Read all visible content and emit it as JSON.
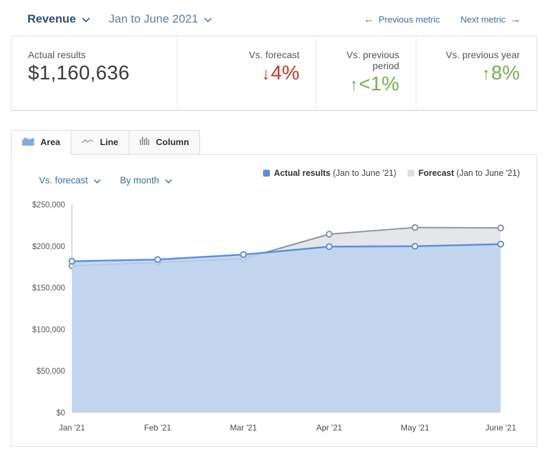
{
  "header": {
    "metric_name": "Revenue",
    "date_range": "Jan to June 2021",
    "prev_arrow": "←",
    "previous_metric_label": "Previous metric",
    "next_metric_label": "Next metric",
    "next_arrow": "→",
    "accent_dark_blue": "#2c4f76",
    "link_blue": "#3c6ca8"
  },
  "summary_cards": [
    {
      "label": "Actual results",
      "value": "$1,160,636",
      "color": "#3b3b3b"
    },
    {
      "label": "Vs. forecast",
      "arrow": "↓",
      "value": "4%",
      "color": "#c13b2a"
    },
    {
      "label": "Vs. previous period",
      "arrow": "↑",
      "value": "<1%",
      "color": "#74b14e"
    },
    {
      "label": "Vs. previous year",
      "arrow": "↑",
      "value": "8%",
      "color": "#74b14e"
    }
  ],
  "tabs": [
    {
      "label": "Area",
      "active": true
    },
    {
      "label": "Line",
      "active": false
    },
    {
      "label": "Column",
      "active": false
    }
  ],
  "controls": {
    "comparison_selector": "Vs. forecast",
    "granularity_selector": "By month"
  },
  "legend": {
    "items": [
      {
        "name": "Actual results",
        "period": "(Jan to June '21)",
        "color": "#5b8fd9"
      },
      {
        "name": "Forecast",
        "period": "(Jan to June '21)",
        "color": "#dcdfe3"
      }
    ]
  },
  "chart_data": {
    "type": "area",
    "categories": [
      "Jan '21",
      "Feb '21",
      "Mar '21",
      "Apr '21",
      "May '21",
      "June '21"
    ],
    "series": [
      {
        "name": "Actual results",
        "values": [
          182000,
          184000,
          190000,
          199500,
          200000,
          202500
        ],
        "line_color": "#5b8fd9",
        "fill_color": "#bcd2f0",
        "marker": "circle"
      },
      {
        "name": "Forecast",
        "values": [
          176500,
          180500,
          185000,
          214500,
          222500,
          222000
        ],
        "line_color": "#8d939c",
        "fill_color": "#e4e6ea",
        "marker": "circle"
      }
    ],
    "title": "",
    "xlabel": "",
    "ylabel": "",
    "ylim": [
      0,
      250000
    ],
    "y_ticks": [
      "$0",
      "$50,000",
      "$100,000",
      "$150,000",
      "$200,000",
      "$250,000"
    ],
    "grid": false,
    "legend_position": "top-right"
  }
}
